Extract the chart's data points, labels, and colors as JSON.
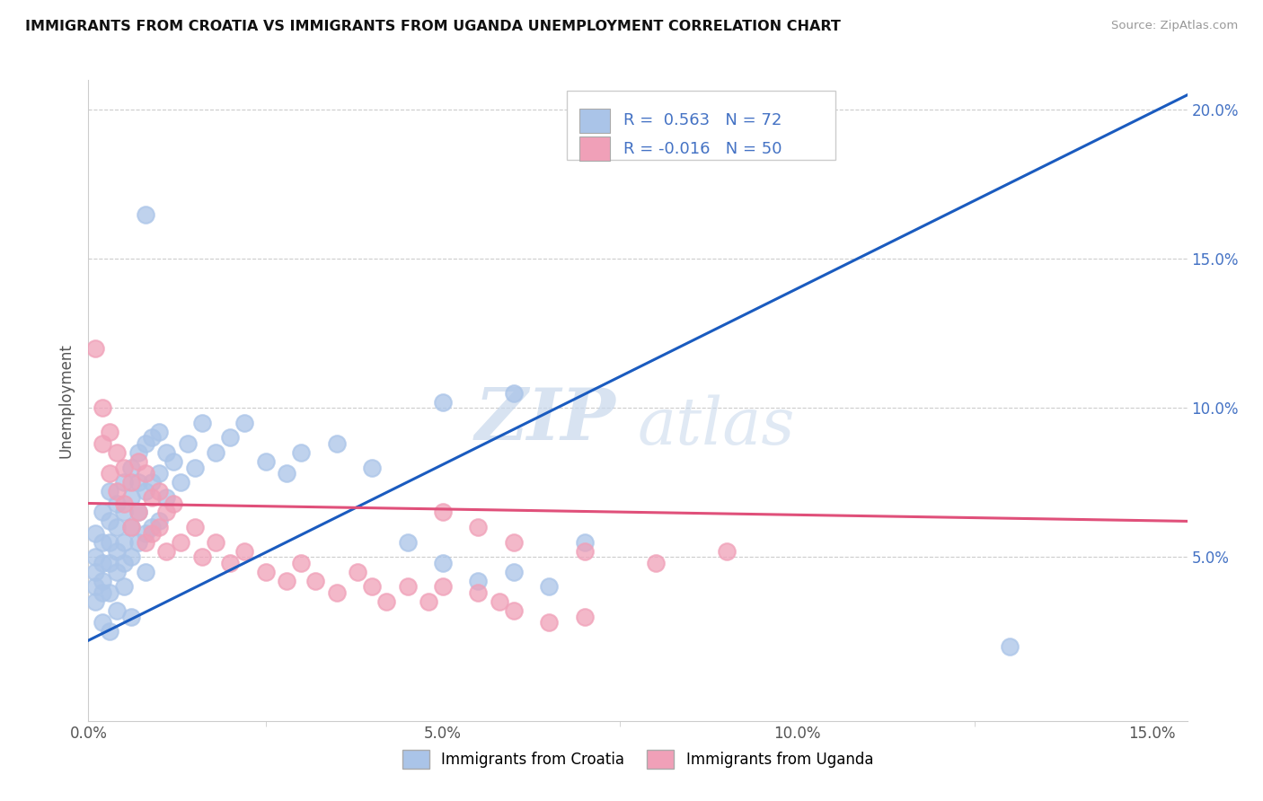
{
  "title": "IMMIGRANTS FROM CROATIA VS IMMIGRANTS FROM UGANDA UNEMPLOYMENT CORRELATION CHART",
  "source": "Source: ZipAtlas.com",
  "ylabel": "Unemployment",
  "xlim": [
    0.0,
    0.155
  ],
  "ylim": [
    -0.005,
    0.21
  ],
  "xtick_labels": [
    "0.0%",
    "5.0%",
    "10.0%",
    "15.0%"
  ],
  "xtick_vals": [
    0.0,
    0.05,
    0.1,
    0.15
  ],
  "ytick_vals": [
    0.0,
    0.05,
    0.1,
    0.15,
    0.2
  ],
  "ytick_labels_right": [
    "",
    "5.0%",
    "10.0%",
    "15.0%",
    "20.0%"
  ],
  "croatia_color": "#aac4e8",
  "uganda_color": "#f0a0b8",
  "croatia_line_color": "#1a5bbf",
  "uganda_line_color": "#e0507a",
  "croatia_R": 0.563,
  "croatia_N": 72,
  "uganda_R": -0.016,
  "uganda_N": 50,
  "legend_label_croatia": "Immigrants from Croatia",
  "legend_label_uganda": "Immigrants from Uganda",
  "watermark_zip": "ZIP",
  "watermark_atlas": "atlas",
  "background_color": "#ffffff",
  "grid_color": "#cccccc",
  "croatia_scatter": [
    [
      0.001,
      0.058
    ],
    [
      0.001,
      0.05
    ],
    [
      0.001,
      0.045
    ],
    [
      0.001,
      0.04
    ],
    [
      0.001,
      0.035
    ],
    [
      0.002,
      0.065
    ],
    [
      0.002,
      0.055
    ],
    [
      0.002,
      0.048
    ],
    [
      0.002,
      0.042
    ],
    [
      0.002,
      0.038
    ],
    [
      0.003,
      0.072
    ],
    [
      0.003,
      0.062
    ],
    [
      0.003,
      0.055
    ],
    [
      0.003,
      0.048
    ],
    [
      0.003,
      0.038
    ],
    [
      0.004,
      0.068
    ],
    [
      0.004,
      0.06
    ],
    [
      0.004,
      0.052
    ],
    [
      0.004,
      0.045
    ],
    [
      0.004,
      0.032
    ],
    [
      0.005,
      0.075
    ],
    [
      0.005,
      0.065
    ],
    [
      0.005,
      0.055
    ],
    [
      0.005,
      0.048
    ],
    [
      0.005,
      0.04
    ],
    [
      0.006,
      0.08
    ],
    [
      0.006,
      0.07
    ],
    [
      0.006,
      0.06
    ],
    [
      0.006,
      0.05
    ],
    [
      0.006,
      0.03
    ],
    [
      0.007,
      0.085
    ],
    [
      0.007,
      0.075
    ],
    [
      0.007,
      0.065
    ],
    [
      0.007,
      0.055
    ],
    [
      0.008,
      0.088
    ],
    [
      0.008,
      0.072
    ],
    [
      0.008,
      0.058
    ],
    [
      0.008,
      0.045
    ],
    [
      0.009,
      0.09
    ],
    [
      0.009,
      0.075
    ],
    [
      0.009,
      0.06
    ],
    [
      0.01,
      0.092
    ],
    [
      0.01,
      0.078
    ],
    [
      0.01,
      0.062
    ],
    [
      0.011,
      0.085
    ],
    [
      0.011,
      0.07
    ],
    [
      0.012,
      0.082
    ],
    [
      0.013,
      0.075
    ],
    [
      0.014,
      0.088
    ],
    [
      0.015,
      0.08
    ],
    [
      0.016,
      0.095
    ],
    [
      0.018,
      0.085
    ],
    [
      0.02,
      0.09
    ],
    [
      0.022,
      0.095
    ],
    [
      0.025,
      0.082
    ],
    [
      0.028,
      0.078
    ],
    [
      0.03,
      0.085
    ],
    [
      0.035,
      0.088
    ],
    [
      0.04,
      0.08
    ],
    [
      0.045,
      0.055
    ],
    [
      0.05,
      0.048
    ],
    [
      0.055,
      0.042
    ],
    [
      0.06,
      0.045
    ],
    [
      0.065,
      0.04
    ],
    [
      0.008,
      0.165
    ],
    [
      0.06,
      0.105
    ],
    [
      0.095,
      0.195
    ],
    [
      0.05,
      0.102
    ],
    [
      0.07,
      0.055
    ],
    [
      0.13,
      0.02
    ],
    [
      0.002,
      0.028
    ],
    [
      0.003,
      0.025
    ]
  ],
  "uganda_scatter": [
    [
      0.001,
      0.12
    ],
    [
      0.002,
      0.1
    ],
    [
      0.002,
      0.088
    ],
    [
      0.003,
      0.092
    ],
    [
      0.003,
      0.078
    ],
    [
      0.004,
      0.085
    ],
    [
      0.004,
      0.072
    ],
    [
      0.005,
      0.08
    ],
    [
      0.005,
      0.068
    ],
    [
      0.006,
      0.075
    ],
    [
      0.006,
      0.06
    ],
    [
      0.007,
      0.082
    ],
    [
      0.007,
      0.065
    ],
    [
      0.008,
      0.078
    ],
    [
      0.008,
      0.055
    ],
    [
      0.009,
      0.07
    ],
    [
      0.009,
      0.058
    ],
    [
      0.01,
      0.072
    ],
    [
      0.01,
      0.06
    ],
    [
      0.011,
      0.065
    ],
    [
      0.011,
      0.052
    ],
    [
      0.012,
      0.068
    ],
    [
      0.013,
      0.055
    ],
    [
      0.015,
      0.06
    ],
    [
      0.016,
      0.05
    ],
    [
      0.018,
      0.055
    ],
    [
      0.02,
      0.048
    ],
    [
      0.022,
      0.052
    ],
    [
      0.025,
      0.045
    ],
    [
      0.028,
      0.042
    ],
    [
      0.03,
      0.048
    ],
    [
      0.032,
      0.042
    ],
    [
      0.035,
      0.038
    ],
    [
      0.038,
      0.045
    ],
    [
      0.04,
      0.04
    ],
    [
      0.042,
      0.035
    ],
    [
      0.045,
      0.04
    ],
    [
      0.048,
      0.035
    ],
    [
      0.05,
      0.04
    ],
    [
      0.055,
      0.038
    ],
    [
      0.058,
      0.035
    ],
    [
      0.06,
      0.032
    ],
    [
      0.065,
      0.028
    ],
    [
      0.07,
      0.03
    ],
    [
      0.05,
      0.065
    ],
    [
      0.055,
      0.06
    ],
    [
      0.06,
      0.055
    ],
    [
      0.07,
      0.052
    ],
    [
      0.08,
      0.048
    ],
    [
      0.09,
      0.052
    ]
  ],
  "croatia_line_x": [
    0.0,
    0.155
  ],
  "croatia_line_y": [
    0.022,
    0.205
  ],
  "uganda_line_x": [
    0.0,
    0.155
  ],
  "uganda_line_y": [
    0.068,
    0.062
  ]
}
